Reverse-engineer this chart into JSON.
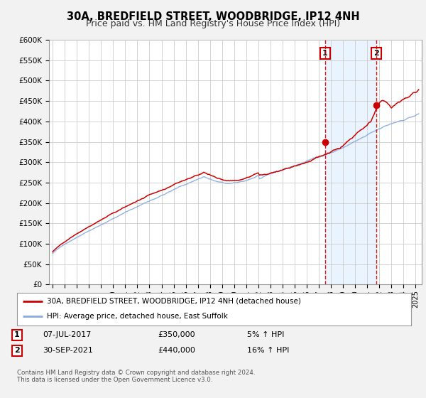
{
  "title": "30A, BREDFIELD STREET, WOODBRIDGE, IP12 4NH",
  "subtitle": "Price paid vs. HM Land Registry's House Price Index (HPI)",
  "ylim": [
    0,
    600000
  ],
  "yticks": [
    0,
    50000,
    100000,
    150000,
    200000,
    250000,
    300000,
    350000,
    400000,
    450000,
    500000,
    550000,
    600000
  ],
  "xlim_start": 1994.7,
  "xlim_end": 2025.5,
  "bg_color": "#f2f2f2",
  "plot_bg_color": "#ffffff",
  "grid_color": "#cccccc",
  "red_line_color": "#cc0000",
  "blue_line_color": "#88aadd",
  "shade_color": "#ddeeff",
  "marker1_x": 2017.52,
  "marker1_y": 350000,
  "marker2_x": 2021.75,
  "marker2_y": 440000,
  "vline1_x": 2017.52,
  "vline2_x": 2021.75,
  "vline_color": "#cc0000",
  "legend_label_red": "30A, BREDFIELD STREET, WOODBRIDGE, IP12 4NH (detached house)",
  "legend_label_blue": "HPI: Average price, detached house, East Suffolk",
  "footer": "Contains HM Land Registry data © Crown copyright and database right 2024.\nThis data is licensed under the Open Government Licence v3.0.",
  "title_fontsize": 10.5,
  "subtitle_fontsize": 9
}
